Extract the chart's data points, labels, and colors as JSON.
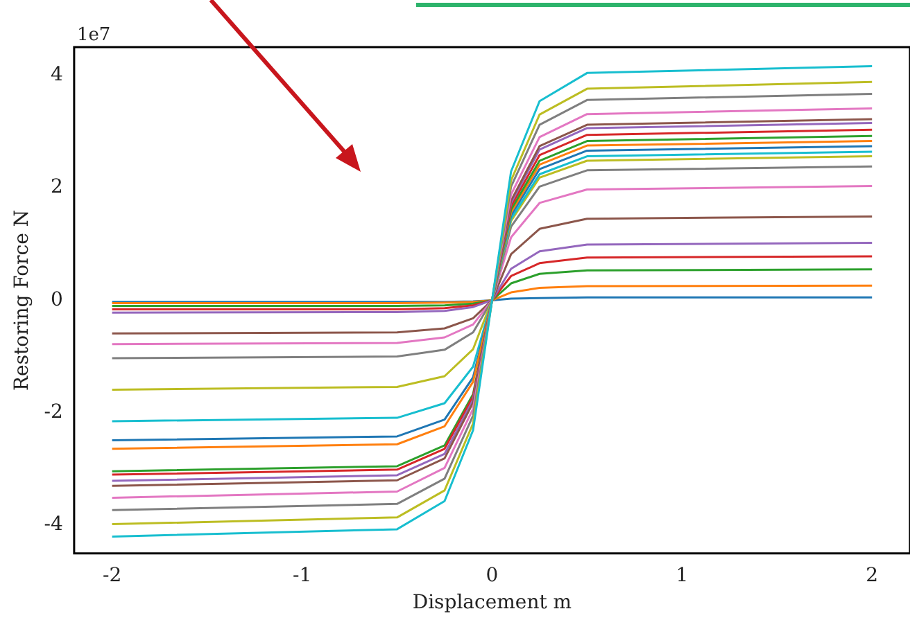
{
  "chart_data": {
    "type": "line",
    "xlabel": "Displacement m",
    "ylabel": "Restoring Force N",
    "annotations": [
      "1e7"
    ],
    "x": [
      -2,
      -0.5,
      -0.25,
      -0.1,
      0,
      0.1,
      0.25,
      0.5,
      2
    ],
    "xlim": [
      -2.2,
      2.2
    ],
    "xticks": [
      -2,
      -1,
      0,
      1,
      2
    ],
    "ylim": [
      -4.5,
      4.5
    ],
    "yticks": [
      -4,
      -2,
      0,
      2,
      4
    ],
    "grid": false,
    "legend": false,
    "marker": "none",
    "line_style": "solid",
    "series": [
      {
        "color": "#17becf",
        "values": [
          -4.2,
          -4.07,
          -3.57,
          -2.31,
          0,
          2.29,
          3.54,
          4.04,
          4.16
        ]
      },
      {
        "color": "#bcbd22",
        "values": [
          -3.98,
          -3.86,
          -3.38,
          -2.19,
          0,
          2.13,
          3.3,
          3.76,
          3.88
        ]
      },
      {
        "color": "#7f7f7f",
        "values": [
          -3.73,
          -3.62,
          -3.17,
          -2.05,
          0,
          2.02,
          3.12,
          3.56,
          3.67
        ]
      },
      {
        "color": "#e377c2",
        "values": [
          -3.51,
          -3.4,
          -2.98,
          -1.93,
          0,
          1.88,
          2.9,
          3.31,
          3.41
        ]
      },
      {
        "color": "#8c564b",
        "values": [
          -3.3,
          -3.2,
          -2.81,
          -1.82,
          0,
          1.77,
          2.74,
          3.12,
          3.22
        ]
      },
      {
        "color": "#9467bd",
        "values": [
          -3.21,
          -3.11,
          -2.73,
          -1.77,
          0,
          1.73,
          2.68,
          3.06,
          3.15
        ]
      },
      {
        "color": "#d62728",
        "values": [
          -3.1,
          -3.01,
          -2.64,
          -1.71,
          0,
          1.67,
          2.58,
          2.94,
          3.03
        ]
      },
      {
        "color": "#2ca02c",
        "values": [
          -3.04,
          -2.95,
          -2.58,
          -1.67,
          0,
          1.61,
          2.48,
          2.83,
          2.92
        ]
      },
      {
        "color": "#ff7f0e",
        "values": [
          -2.64,
          -2.56,
          -2.24,
          -1.45,
          0,
          1.56,
          2.41,
          2.75,
          2.83
        ]
      },
      {
        "color": "#1f77b4",
        "values": [
          -2.49,
          -2.42,
          -2.12,
          -1.37,
          0,
          1.51,
          2.33,
          2.66,
          2.74
        ]
      },
      {
        "color": "#17becf",
        "values": [
          -2.15,
          -2.09,
          -1.83,
          -1.18,
          0,
          1.45,
          2.24,
          2.56,
          2.64
        ]
      },
      {
        "color": "#bcbd22",
        "values": [
          -1.59,
          -1.54,
          -1.35,
          -0.87,
          0,
          1.41,
          2.18,
          2.48,
          2.56
        ]
      },
      {
        "color": "#7f7f7f",
        "values": [
          -1.03,
          -1,
          -0.88,
          -0.57,
          0,
          1.31,
          2.02,
          2.31,
          2.38
        ]
      },
      {
        "color": "#e377c2",
        "values": [
          -0.78,
          -0.76,
          -0.66,
          -0.43,
          0,
          1.12,
          1.73,
          1.97,
          2.03
        ]
      },
      {
        "color": "#8c564b",
        "values": [
          -0.59,
          -0.57,
          -0.5,
          -0.32,
          0,
          0.82,
          1.27,
          1.45,
          1.49
        ]
      },
      {
        "color": "#9467bd",
        "values": [
          -0.22,
          -0.21,
          -0.19,
          -0.12,
          0,
          0.56,
          0.87,
          0.99,
          1.02
        ]
      },
      {
        "color": "#d62728",
        "values": [
          -0.16,
          -0.16,
          -0.14,
          -0.09,
          0,
          0.43,
          0.66,
          0.76,
          0.78
        ]
      },
      {
        "color": "#2ca02c",
        "values": [
          -0.1,
          -0.1,
          -0.09,
          -0.06,
          0,
          0.3,
          0.47,
          0.53,
          0.55
        ]
      },
      {
        "color": "#ff7f0e",
        "values": [
          -0.05,
          -0.05,
          -0.04,
          -0.03,
          0,
          0.14,
          0.22,
          0.25,
          0.26
        ]
      },
      {
        "color": "#1f77b4",
        "values": [
          -0.03,
          -0.03,
          -0.03,
          -0.02,
          0,
          0.03,
          0.04,
          0.05,
          0.05
        ]
      }
    ]
  }
}
